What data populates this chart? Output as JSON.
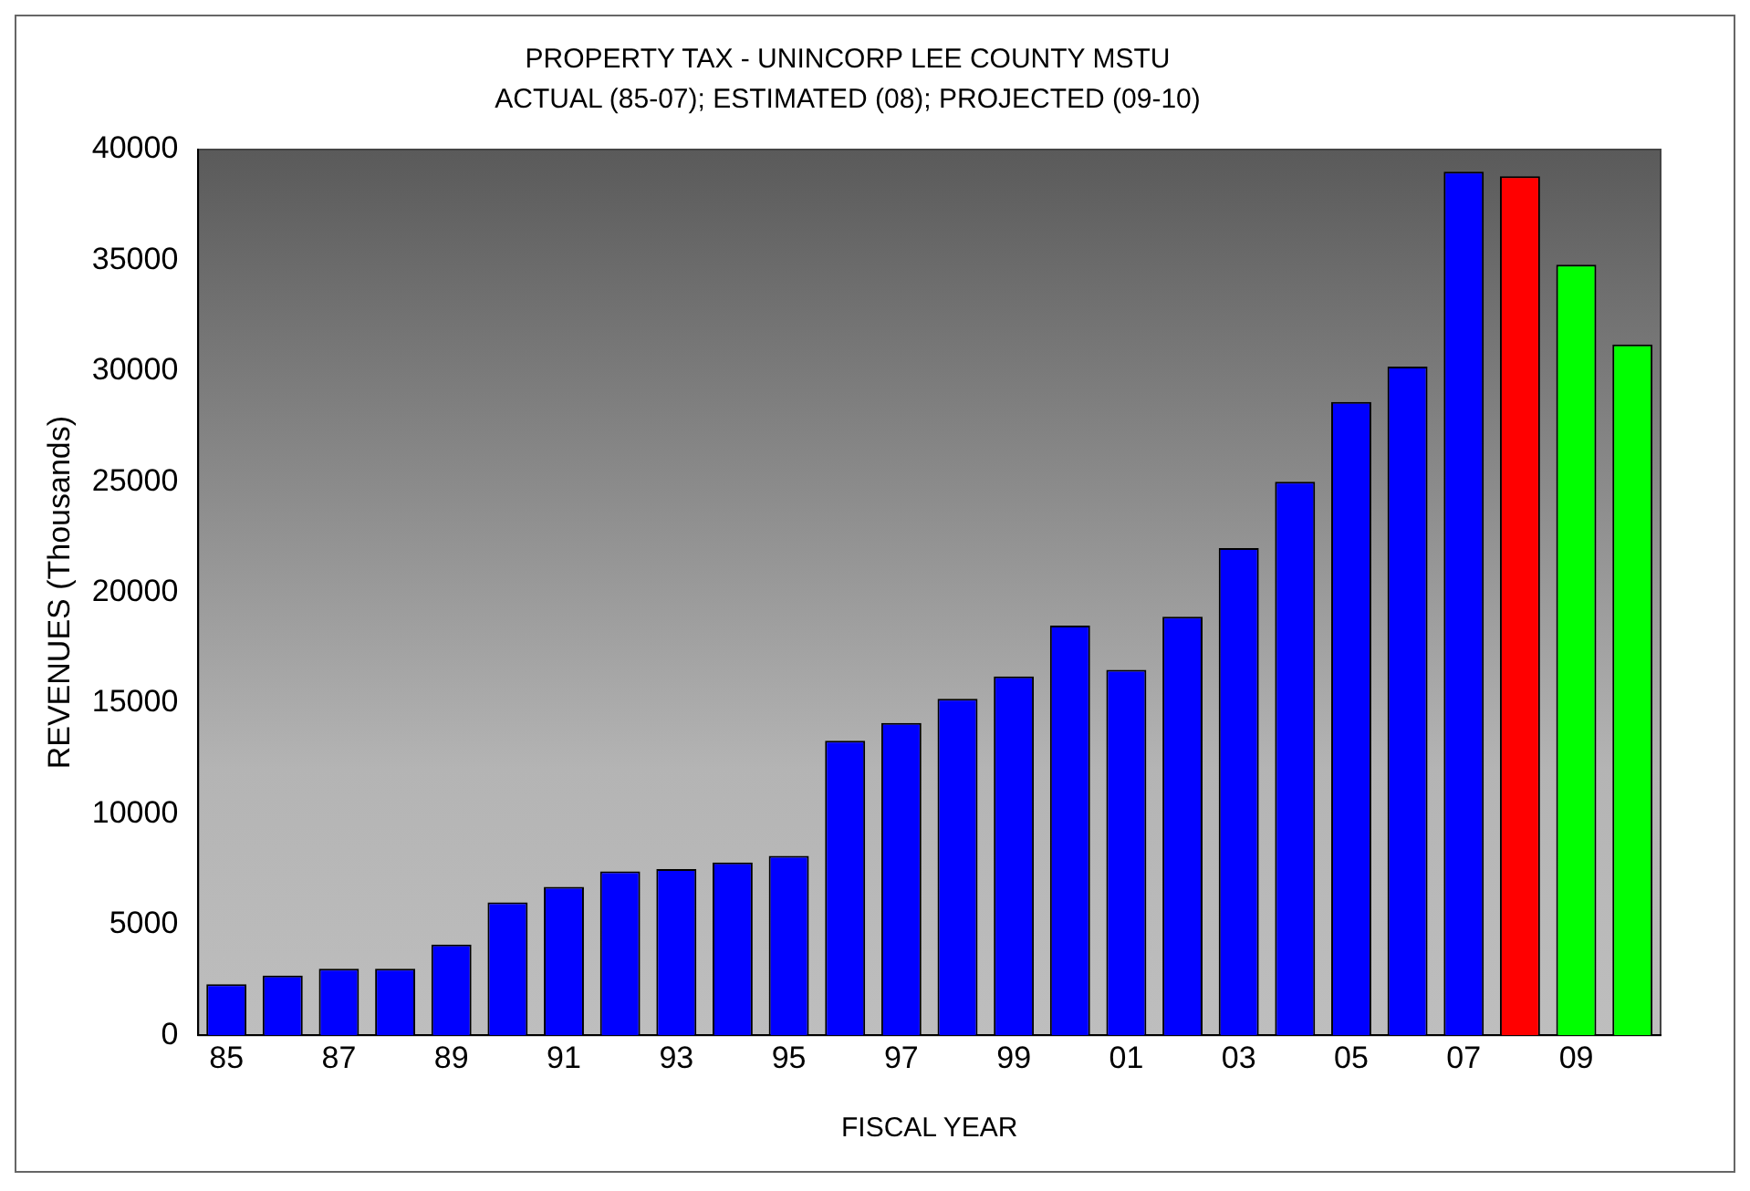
{
  "chart_data": {
    "type": "bar",
    "title": "PROPERTY TAX - UNINCORP LEE COUNTY MSTU",
    "subtitle": "ACTUAL (85-07); ESTIMATED (08); PROJECTED (09-10)",
    "xlabel": "FISCAL YEAR",
    "ylabel": "REVENUES (Thousands)",
    "categories": [
      "85",
      null,
      "87",
      null,
      "89",
      null,
      "91",
      null,
      "93",
      null,
      "95",
      null,
      "97",
      null,
      "99",
      null,
      "01",
      null,
      "03",
      null,
      "05",
      null,
      "07",
      null,
      "09",
      null
    ],
    "values": [
      2300,
      2700,
      3000,
      3000,
      4100,
      6000,
      6700,
      7400,
      7500,
      7800,
      8100,
      13300,
      14100,
      15200,
      16200,
      18500,
      16500,
      18900,
      22000,
      25000,
      28600,
      30200,
      39000,
      38800,
      34800,
      31200
    ],
    "colors": [
      "#0000ff",
      "#0000ff",
      "#0000ff",
      "#0000ff",
      "#0000ff",
      "#0000ff",
      "#0000ff",
      "#0000ff",
      "#0000ff",
      "#0000ff",
      "#0000ff",
      "#0000ff",
      "#0000ff",
      "#0000ff",
      "#0000ff",
      "#0000ff",
      "#0000ff",
      "#0000ff",
      "#0000ff",
      "#0000ff",
      "#0000ff",
      "#0000ff",
      "#0000ff",
      "#ff0000",
      "#00ff00",
      "#00ff00"
    ],
    "ylim": [
      0,
      40000
    ],
    "yticks": [
      0,
      5000,
      10000,
      15000,
      20000,
      25000,
      30000,
      35000,
      40000
    ],
    "grid": false,
    "legend": false
  }
}
